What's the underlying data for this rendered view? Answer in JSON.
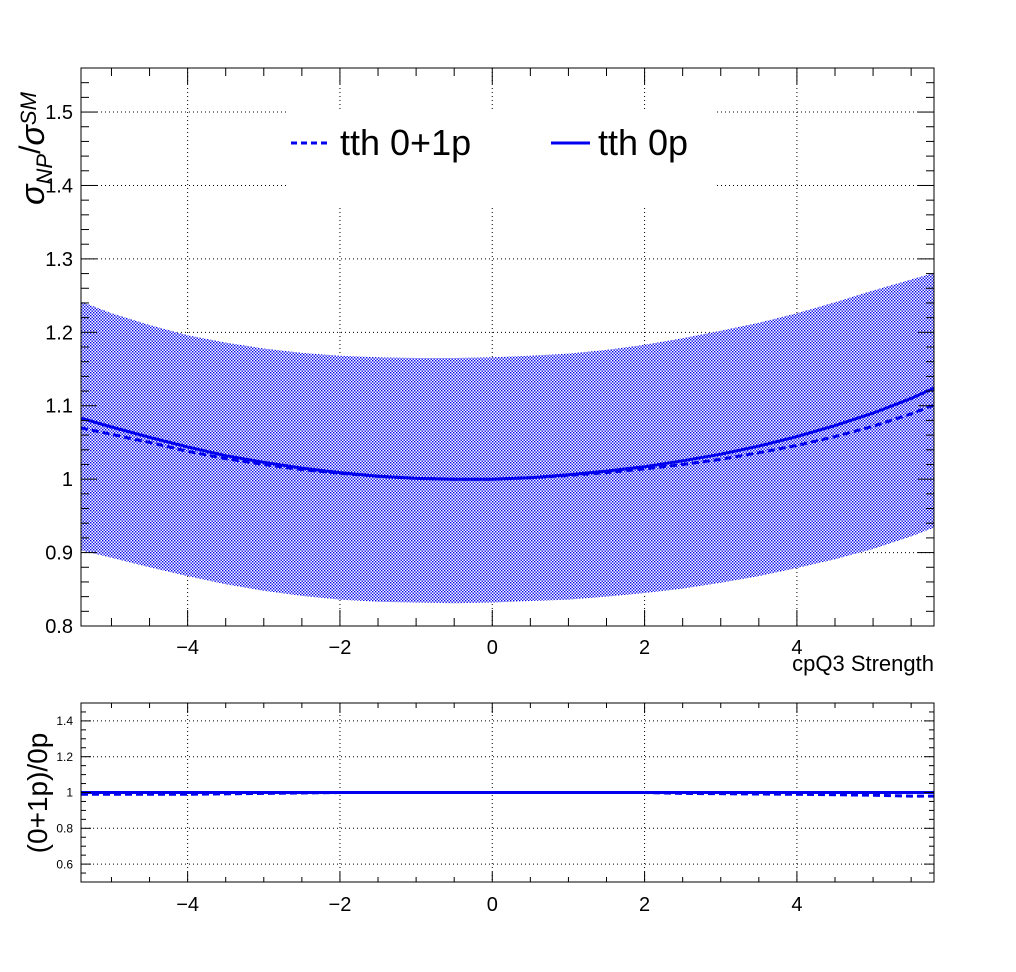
{
  "chart_data": [
    {
      "type": "line",
      "panel": "main",
      "xlabel": "cpQ3 Strength",
      "ylabel_main": "σ",
      "ylabel_sub_np": "NP",
      "ylabel_slash": "/",
      "ylabel_sm": "σ",
      "ylabel_sub_sm": "SM",
      "xlim": [
        -5.4,
        5.8
      ],
      "ylim": [
        0.8,
        1.56
      ],
      "x_ticks": [
        -4,
        -2,
        0,
        2,
        4
      ],
      "x_tick_labels": [
        "−4",
        "−2",
        "0",
        "2",
        "4"
      ],
      "y_ticks": [
        0.8,
        0.9,
        1.0,
        1.1,
        1.2,
        1.3,
        1.4,
        1.5
      ],
      "y_tick_labels": [
        "0.8",
        "0.9",
        "1",
        "1.1",
        "1.2",
        "1.3",
        "1.4",
        "1.5"
      ],
      "grid": true,
      "legend": "top-center",
      "x": [
        -5.4,
        -5.0,
        -4.5,
        -4.0,
        -3.5,
        -3.0,
        -2.5,
        -2.0,
        -1.5,
        -1.0,
        -0.5,
        0.0,
        0.5,
        1.0,
        1.5,
        2.0,
        2.5,
        3.0,
        3.5,
        4.0,
        4.5,
        5.0,
        5.5,
        5.8
      ],
      "series": [
        {
          "name": "tth 0+1p",
          "style": "dashed",
          "color": "#0000ee",
          "values": [
            1.07,
            1.061,
            1.05,
            1.038,
            1.028,
            1.02,
            1.013,
            1.008,
            1.004,
            1.001,
            1.0,
            1.0,
            1.002,
            1.005,
            1.009,
            1.014,
            1.02,
            1.027,
            1.036,
            1.046,
            1.058,
            1.072,
            1.089,
            1.101
          ]
        },
        {
          "name": "tth 0p",
          "style": "solid",
          "color": "#0000ee",
          "values": [
            1.083,
            1.071,
            1.057,
            1.044,
            1.032,
            1.023,
            1.015,
            1.009,
            1.004,
            1.001,
            1.0,
            1.0,
            1.002,
            1.006,
            1.011,
            1.017,
            1.025,
            1.034,
            1.045,
            1.058,
            1.073,
            1.09,
            1.11,
            1.124
          ]
        }
      ],
      "band": {
        "color": "#0000ee",
        "upper": [
          1.242,
          1.226,
          1.21,
          1.196,
          1.186,
          1.178,
          1.172,
          1.168,
          1.166,
          1.165,
          1.165,
          1.166,
          1.168,
          1.171,
          1.176,
          1.183,
          1.192,
          1.202,
          1.213,
          1.226,
          1.241,
          1.257,
          1.272,
          1.281
        ],
        "lower": [
          0.903,
          0.893,
          0.88,
          0.868,
          0.857,
          0.848,
          0.841,
          0.836,
          0.833,
          0.832,
          0.831,
          0.832,
          0.834,
          0.836,
          0.84,
          0.845,
          0.851,
          0.859,
          0.868,
          0.879,
          0.891,
          0.905,
          0.922,
          0.934
        ]
      }
    },
    {
      "type": "line",
      "panel": "ratio",
      "ylabel": "(0+1p)/0p",
      "xlim": [
        -5.4,
        5.8
      ],
      "ylim": [
        0.5,
        1.5
      ],
      "x_ticks": [
        -4,
        -2,
        0,
        2,
        4
      ],
      "x_tick_labels": [
        "−4",
        "−2",
        "0",
        "2",
        "4"
      ],
      "y_ticks": [
        0.6,
        0.8,
        1.0,
        1.2,
        1.4
      ],
      "y_tick_labels": [
        "0.6",
        "0.8",
        "1",
        "1.2",
        "1.4"
      ],
      "grid": true,
      "x": [
        -5.4,
        -4.0,
        -2.0,
        0.0,
        2.0,
        2.5,
        4.0,
        5.0,
        5.5,
        5.8
      ],
      "series": [
        {
          "style": "dashed",
          "color": "#0000ee",
          "values": [
            0.99,
            0.99,
            1.0,
            1.0,
            1.0,
            0.995,
            0.99,
            0.985,
            0.98,
            0.98
          ]
        },
        {
          "style": "solid",
          "color": "#0000ee",
          "values": [
            1.0,
            1.0,
            1.0,
            1.0,
            1.0,
            1.0,
            1.0,
            1.0,
            1.0,
            1.0
          ]
        }
      ]
    }
  ]
}
